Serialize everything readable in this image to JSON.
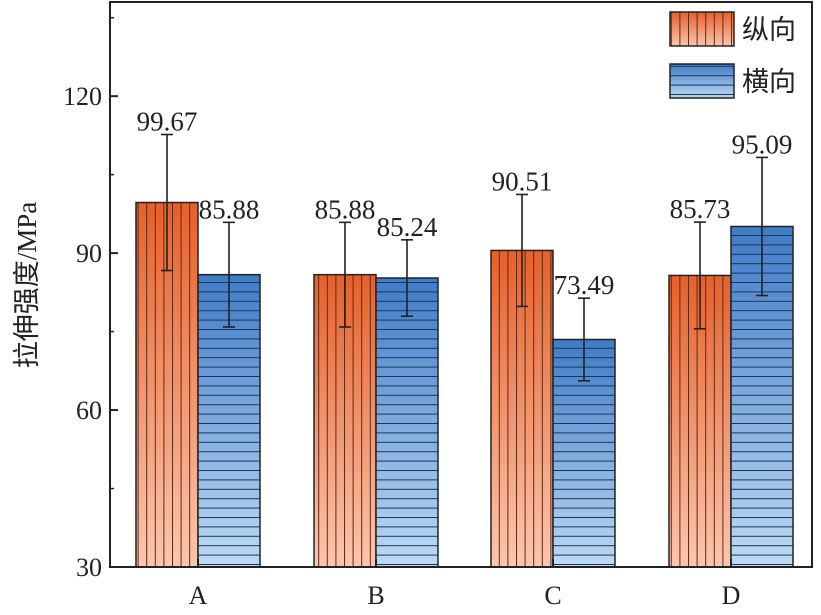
{
  "chart_data": {
    "type": "bar",
    "categories": [
      "A",
      "B",
      "C",
      "D"
    ],
    "series": [
      {
        "name": "纵向",
        "values": [
          99.67,
          85.88,
          90.51,
          85.73
        ],
        "errors": [
          13,
          10,
          10.7,
          10.2
        ],
        "labels": [
          "99.67",
          "85.88",
          "90.51",
          "85.73"
        ],
        "color_top": "#e6602a",
        "color_bottom": "#fcc6ad",
        "pattern": "vertical-lines"
      },
      {
        "name": "横向",
        "values": [
          85.88,
          85.24,
          73.49,
          95.09
        ],
        "errors": [
          10,
          7.3,
          7.9,
          13.2
        ],
        "labels": [
          "85.88",
          "85.24",
          "73.49",
          "95.09"
        ],
        "color_top": "#3f7bc8",
        "color_bottom": "#bcdaf4",
        "pattern": "horizontal-lines"
      }
    ],
    "ylabel": "拉伸强度/MPa",
    "xlabel": "",
    "ylim": [
      30,
      138
    ],
    "yticks": [
      30,
      60,
      90,
      120
    ],
    "grid": false,
    "legend": "top-right"
  }
}
